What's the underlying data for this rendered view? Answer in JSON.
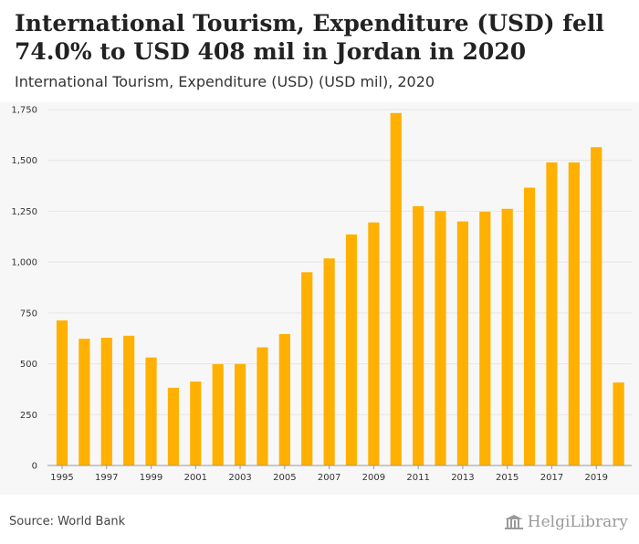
{
  "header": {
    "title": "International Tourism, Expenditure (USD) fell 74.0% to USD 408 mil in Jordan in 2020",
    "subtitle": "International Tourism, Expenditure (USD) (USD mil), 2020"
  },
  "footer": {
    "source": "Source: World Bank",
    "logo_text": "HelgiLibrary"
  },
  "colors": {
    "bar": "#FFB000",
    "grid": "#e6e6e6",
    "axis": "#999999"
  },
  "chart_data": {
    "type": "bar",
    "title": "International Tourism, Expenditure (USD) (USD mil)",
    "xlabel": "",
    "ylabel": "",
    "categories": [
      "1995",
      "1996",
      "1997",
      "1998",
      "1999",
      "2000",
      "2001",
      "2002",
      "2003",
      "2004",
      "2005",
      "2006",
      "2007",
      "2008",
      "2009",
      "2010",
      "2011",
      "2012",
      "2013",
      "2014",
      "2015",
      "2016",
      "2017",
      "2018",
      "2019",
      "2020"
    ],
    "x_tick_labels": [
      "1995",
      "1997",
      "1999",
      "2001",
      "2003",
      "2005",
      "2007",
      "2009",
      "2011",
      "2013",
      "2015",
      "2017",
      "2019"
    ],
    "values": [
      713,
      623,
      628,
      638,
      531,
      382,
      413,
      498,
      499,
      581,
      646,
      950,
      1018,
      1136,
      1195,
      1733,
      1275,
      1251,
      1200,
      1248,
      1262,
      1366,
      1490,
      1490,
      1565,
      408
    ],
    "ylim": [
      0,
      1750
    ],
    "y_ticks": [
      0,
      250,
      500,
      750,
      1000,
      1250,
      1500,
      1750
    ],
    "y_tick_labels": [
      "0",
      "250",
      "500",
      "750",
      "1,000",
      "1,250",
      "1,500",
      "1,750"
    ],
    "grid": true
  }
}
